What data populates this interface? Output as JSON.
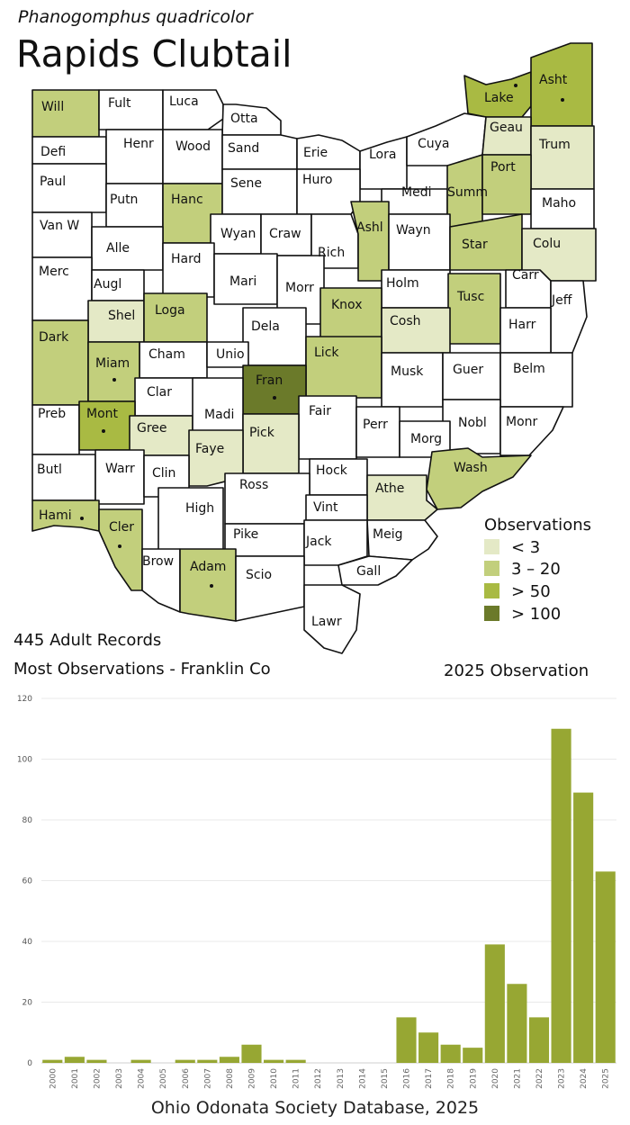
{
  "header": {
    "scientific_name": "Phanogomphus quadricolor",
    "common_name": "Rapids Clubtail"
  },
  "legend": {
    "title": "Observations",
    "items": [
      {
        "label": "< 3",
        "color": "#e4e9c6"
      },
      {
        "label": "3 – 20",
        "color": "#c2cf7c"
      },
      {
        "label": "> 50",
        "color": "#a9ba43"
      },
      {
        "label": "> 100",
        "color": "#6b7a2a"
      }
    ],
    "obs_2025_label": "2025 Observation"
  },
  "summary": {
    "records": "445 Adult Records",
    "most": "Most Observations - Franklin Co"
  },
  "map": {
    "counties": [
      {
        "name": "Will",
        "level": 1
      },
      {
        "name": "Fult",
        "level": 0
      },
      {
        "name": "Luca",
        "level": 0
      },
      {
        "name": "Otta",
        "level": 0
      },
      {
        "name": "Lake",
        "level": 2,
        "obs2025": true
      },
      {
        "name": "Asht",
        "level": 2,
        "obs2025": true
      },
      {
        "name": "Defi",
        "level": 0
      },
      {
        "name": "Henr",
        "level": 0
      },
      {
        "name": "Wood",
        "level": 0
      },
      {
        "name": "Sand",
        "level": 0
      },
      {
        "name": "Erie",
        "level": 0
      },
      {
        "name": "Lora",
        "level": 0
      },
      {
        "name": "Cuya",
        "level": 0
      },
      {
        "name": "Geau",
        "level": 0.5
      },
      {
        "name": "Trum",
        "level": 0.5
      },
      {
        "name": "Paul",
        "level": 0
      },
      {
        "name": "Putn",
        "level": 0
      },
      {
        "name": "Hanc",
        "level": 1
      },
      {
        "name": "Sene",
        "level": 0
      },
      {
        "name": "Huro",
        "level": 0
      },
      {
        "name": "Medi",
        "level": 0
      },
      {
        "name": "Summ",
        "level": 1
      },
      {
        "name": "Port",
        "level": 1
      },
      {
        "name": "Maho",
        "level": 0
      },
      {
        "name": "Van W",
        "level": 0
      },
      {
        "name": "Alle",
        "level": 0
      },
      {
        "name": "Wyan",
        "level": 0
      },
      {
        "name": "Craw",
        "level": 0
      },
      {
        "name": "Rich",
        "level": 0
      },
      {
        "name": "Ashl",
        "level": 1
      },
      {
        "name": "Wayn",
        "level": 0
      },
      {
        "name": "Star",
        "level": 1
      },
      {
        "name": "Colu",
        "level": 0.5
      },
      {
        "name": "Merc",
        "level": 0
      },
      {
        "name": "Augl",
        "level": 0
      },
      {
        "name": "Hard",
        "level": 0
      },
      {
        "name": "Mari",
        "level": 0
      },
      {
        "name": "Morr",
        "level": 0
      },
      {
        "name": "Holm",
        "level": 0
      },
      {
        "name": "Carr",
        "level": 0
      },
      {
        "name": "Shel",
        "level": 0.5
      },
      {
        "name": "Loga",
        "level": 1
      },
      {
        "name": "Knox",
        "level": 1
      },
      {
        "name": "Tusc",
        "level": 1
      },
      {
        "name": "Jeff",
        "level": 0
      },
      {
        "name": "Dela",
        "level": 0
      },
      {
        "name": "Cosh",
        "level": 0.5
      },
      {
        "name": "Harr",
        "level": 0
      },
      {
        "name": "Dark",
        "level": 1
      },
      {
        "name": "Cham",
        "level": 0
      },
      {
        "name": "Unio",
        "level": 0
      },
      {
        "name": "Lick",
        "level": 1
      },
      {
        "name": "Miam",
        "level": 1,
        "obs2025": true
      },
      {
        "name": "Fran",
        "level": 3,
        "obs2025": true
      },
      {
        "name": "Musk",
        "level": 0
      },
      {
        "name": "Guer",
        "level": 0
      },
      {
        "name": "Belm",
        "level": 0
      },
      {
        "name": "Clar",
        "level": 0
      },
      {
        "name": "Preb",
        "level": 0
      },
      {
        "name": "Mont",
        "level": 2,
        "obs2025": true
      },
      {
        "name": "Gree",
        "level": 0.5
      },
      {
        "name": "Madi",
        "level": 0
      },
      {
        "name": "Fair",
        "level": 0
      },
      {
        "name": "Perr",
        "level": 0
      },
      {
        "name": "Nobl",
        "level": 0
      },
      {
        "name": "Monr",
        "level": 0
      },
      {
        "name": "Pick",
        "level": 0.5
      },
      {
        "name": "Faye",
        "level": 0.5
      },
      {
        "name": "Morg",
        "level": 0
      },
      {
        "name": "Butl",
        "level": 0
      },
      {
        "name": "Warr",
        "level": 0
      },
      {
        "name": "Clin",
        "level": 0
      },
      {
        "name": "Hock",
        "level": 0
      },
      {
        "name": "Wash",
        "level": 1
      },
      {
        "name": "Ross",
        "level": 0
      },
      {
        "name": "Athe",
        "level": 0.5
      },
      {
        "name": "Vint",
        "level": 0
      },
      {
        "name": "Hami",
        "level": 1,
        "obs2025": true
      },
      {
        "name": "Cler",
        "level": 1,
        "obs2025": true
      },
      {
        "name": "High",
        "level": 0
      },
      {
        "name": "Meig",
        "level": 0
      },
      {
        "name": "Pike",
        "level": 0
      },
      {
        "name": "Jack",
        "level": 0
      },
      {
        "name": "Brow",
        "level": 0
      },
      {
        "name": "Adam",
        "level": 1,
        "obs2025": true
      },
      {
        "name": "Scio",
        "level": 0
      },
      {
        "name": "Gall",
        "level": 0
      },
      {
        "name": "Lawr",
        "level": 0
      }
    ]
  },
  "chart_data": {
    "type": "bar",
    "title": "",
    "xlabel": "",
    "ylabel": "",
    "ylim": [
      0,
      120
    ],
    "yticks": [
      0,
      20,
      40,
      60,
      80,
      100,
      120
    ],
    "grid": true,
    "bar_color": "#97a733",
    "categories": [
      "2000",
      "2001",
      "2002",
      "2003",
      "2004",
      "2005",
      "2006",
      "2007",
      "2008",
      "2009",
      "2010",
      "2011",
      "2012",
      "2013",
      "2014",
      "2015",
      "2016",
      "2017",
      "2018",
      "2019",
      "2020",
      "2021",
      "2022",
      "2023",
      "2024",
      "2025"
    ],
    "values": [
      1,
      2,
      1,
      0,
      1,
      0,
      1,
      1,
      2,
      6,
      1,
      1,
      0,
      0,
      0,
      0,
      15,
      10,
      6,
      5,
      39,
      26,
      15,
      110,
      89,
      63
    ]
  },
  "footer": "Ohio Odonata Society Database, 2025"
}
